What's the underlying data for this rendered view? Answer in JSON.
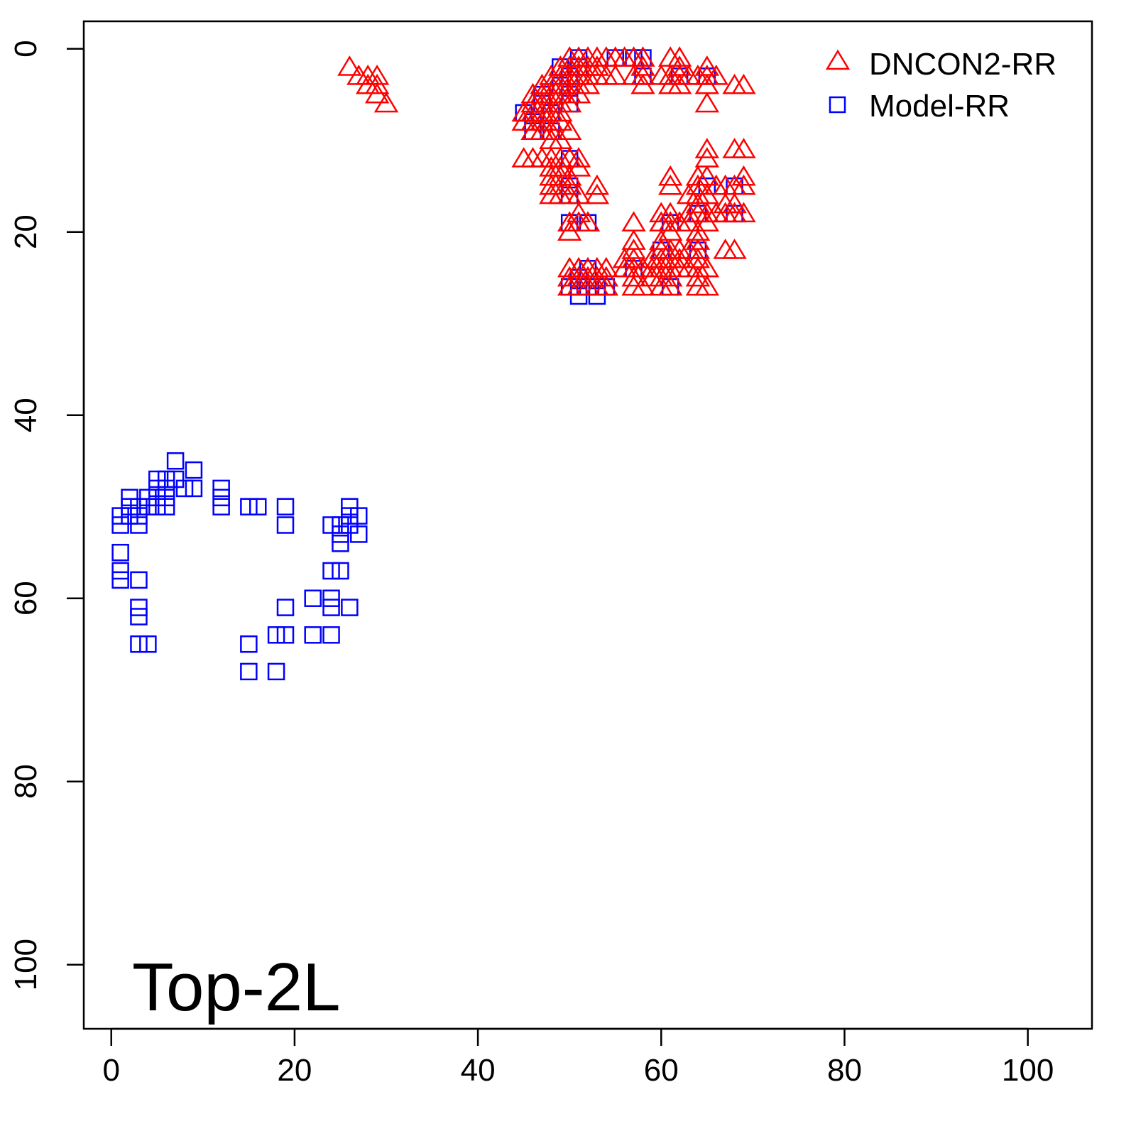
{
  "chart_data": {
    "type": "scatter",
    "title": "",
    "xlabel": "",
    "ylabel": "",
    "xlim": [
      -3,
      107
    ],
    "ylim": [
      107,
      -3
    ],
    "y_axis_reversed": true,
    "grid": false,
    "legend_position": "top-right",
    "x_ticks": [
      0,
      20,
      40,
      60,
      80,
      100
    ],
    "y_ticks": [
      0,
      20,
      40,
      60,
      80,
      100
    ],
    "x_tick_labels": [
      "0",
      "20",
      "40",
      "60",
      "80",
      "100"
    ],
    "y_tick_labels": [
      "0",
      "20",
      "40",
      "60",
      "80",
      "100"
    ],
    "annotation": "Top-2L",
    "series": [
      {
        "name": "DNCON2-RR",
        "marker": "triangle",
        "color": "#ff0000",
        "points": [
          [
            26,
            2
          ],
          [
            27,
            3
          ],
          [
            28,
            3
          ],
          [
            28,
            4
          ],
          [
            29,
            3
          ],
          [
            29,
            4
          ],
          [
            29,
            5
          ],
          [
            30,
            6
          ],
          [
            50,
            1
          ],
          [
            51,
            1
          ],
          [
            52,
            1
          ],
          [
            53,
            1
          ],
          [
            54,
            1
          ],
          [
            55,
            1
          ],
          [
            56,
            1
          ],
          [
            57,
            1
          ],
          [
            58,
            1
          ],
          [
            61,
            1
          ],
          [
            62,
            1
          ],
          [
            49,
            2
          ],
          [
            50,
            2
          ],
          [
            51,
            2
          ],
          [
            52,
            2
          ],
          [
            53,
            2
          ],
          [
            58,
            2
          ],
          [
            62,
            2
          ],
          [
            65,
            2
          ],
          [
            48,
            3
          ],
          [
            49,
            3
          ],
          [
            50,
            3
          ],
          [
            51,
            3
          ],
          [
            52,
            3
          ],
          [
            53,
            3
          ],
          [
            54,
            3
          ],
          [
            55,
            3
          ],
          [
            57,
            3
          ],
          [
            58,
            3
          ],
          [
            60,
            3
          ],
          [
            61,
            3
          ],
          [
            62,
            3
          ],
          [
            63,
            3
          ],
          [
            64,
            3
          ],
          [
            65,
            3
          ],
          [
            66,
            3
          ],
          [
            47,
            4
          ],
          [
            48,
            4
          ],
          [
            49,
            4
          ],
          [
            50,
            4
          ],
          [
            51,
            4
          ],
          [
            52,
            4
          ],
          [
            58,
            4
          ],
          [
            61,
            4
          ],
          [
            62,
            4
          ],
          [
            65,
            4
          ],
          [
            68,
            4
          ],
          [
            69,
            4
          ],
          [
            46,
            5
          ],
          [
            47,
            5
          ],
          [
            48,
            5
          ],
          [
            49,
            5
          ],
          [
            50,
            5
          ],
          [
            51,
            5
          ],
          [
            46,
            6
          ],
          [
            47,
            6
          ],
          [
            48,
            6
          ],
          [
            49,
            6
          ],
          [
            50,
            6
          ],
          [
            65,
            6
          ],
          [
            45,
            7
          ],
          [
            46,
            7
          ],
          [
            47,
            7
          ],
          [
            48,
            7
          ],
          [
            49,
            7
          ],
          [
            45,
            8
          ],
          [
            46,
            8
          ],
          [
            47,
            8
          ],
          [
            48,
            8
          ],
          [
            49,
            8
          ],
          [
            46,
            9
          ],
          [
            47,
            9
          ],
          [
            48,
            9
          ],
          [
            50,
            9
          ],
          [
            48,
            10
          ],
          [
            49,
            10
          ],
          [
            65,
            11
          ],
          [
            68,
            11
          ],
          [
            69,
            11
          ],
          [
            45,
            12
          ],
          [
            46,
            12
          ],
          [
            47,
            12
          ],
          [
            48,
            12
          ],
          [
            49,
            12
          ],
          [
            50,
            12
          ],
          [
            51,
            12
          ],
          [
            65,
            12
          ],
          [
            48,
            13
          ],
          [
            49,
            13
          ],
          [
            51,
            13
          ],
          [
            48,
            14
          ],
          [
            49,
            14
          ],
          [
            50,
            14
          ],
          [
            61,
            14
          ],
          [
            64,
            14
          ],
          [
            65,
            14
          ],
          [
            69,
            14
          ],
          [
            48,
            15
          ],
          [
            49,
            15
          ],
          [
            50,
            15
          ],
          [
            53,
            15
          ],
          [
            61,
            15
          ],
          [
            64,
            15
          ],
          [
            66,
            15
          ],
          [
            67,
            15
          ],
          [
            68,
            15
          ],
          [
            69,
            15
          ],
          [
            48,
            16
          ],
          [
            49,
            16
          ],
          [
            50,
            16
          ],
          [
            51,
            16
          ],
          [
            53,
            16
          ],
          [
            63,
            16
          ],
          [
            64,
            16
          ],
          [
            65,
            16
          ],
          [
            64,
            17
          ],
          [
            67,
            17
          ],
          [
            68,
            17
          ],
          [
            51,
            18
          ],
          [
            60,
            18
          ],
          [
            61,
            18
          ],
          [
            63,
            18
          ],
          [
            64,
            18
          ],
          [
            65,
            18
          ],
          [
            66,
            18
          ],
          [
            67,
            18
          ],
          [
            68,
            18
          ],
          [
            69,
            18
          ],
          [
            50,
            19
          ],
          [
            51,
            19
          ],
          [
            52,
            19
          ],
          [
            57,
            19
          ],
          [
            60,
            19
          ],
          [
            61,
            19
          ],
          [
            62,
            19
          ],
          [
            63,
            19
          ],
          [
            65,
            19
          ],
          [
            50,
            20
          ],
          [
            61,
            20
          ],
          [
            64,
            20
          ],
          [
            57,
            21
          ],
          [
            60,
            21
          ],
          [
            64,
            21
          ],
          [
            57,
            22
          ],
          [
            60,
            22
          ],
          [
            61,
            22
          ],
          [
            62,
            22
          ],
          [
            63,
            22
          ],
          [
            64,
            22
          ],
          [
            67,
            22
          ],
          [
            68,
            22
          ],
          [
            56,
            23
          ],
          [
            57,
            23
          ],
          [
            59,
            23
          ],
          [
            60,
            23
          ],
          [
            61,
            23
          ],
          [
            62,
            23
          ],
          [
            64,
            23
          ],
          [
            50,
            24
          ],
          [
            51,
            24
          ],
          [
            52,
            24
          ],
          [
            53,
            24
          ],
          [
            54,
            24
          ],
          [
            56,
            24
          ],
          [
            57,
            24
          ],
          [
            58,
            24
          ],
          [
            59,
            24
          ],
          [
            60,
            24
          ],
          [
            61,
            24
          ],
          [
            62,
            24
          ],
          [
            63,
            24
          ],
          [
            64,
            24
          ],
          [
            65,
            24
          ],
          [
            50,
            25
          ],
          [
            51,
            25
          ],
          [
            52,
            25
          ],
          [
            53,
            25
          ],
          [
            54,
            25
          ],
          [
            57,
            25
          ],
          [
            59,
            25
          ],
          [
            60,
            25
          ],
          [
            61,
            25
          ],
          [
            64,
            25
          ],
          [
            50,
            26
          ],
          [
            51,
            26
          ],
          [
            52,
            26
          ],
          [
            53,
            26
          ],
          [
            54,
            26
          ],
          [
            57,
            26
          ],
          [
            58,
            26
          ],
          [
            60,
            26
          ],
          [
            61,
            26
          ],
          [
            64,
            26
          ],
          [
            65,
            26
          ]
        ]
      },
      {
        "name": "Model-RR",
        "marker": "square",
        "color": "#0000ff",
        "points": [
          [
            1,
            51
          ],
          [
            1,
            52
          ],
          [
            1,
            55
          ],
          [
            1,
            57
          ],
          [
            1,
            58
          ],
          [
            2,
            49
          ],
          [
            2,
            50
          ],
          [
            2,
            51
          ],
          [
            3,
            50
          ],
          [
            3,
            51
          ],
          [
            3,
            52
          ],
          [
            3,
            58
          ],
          [
            3,
            61
          ],
          [
            3,
            62
          ],
          [
            3,
            65
          ],
          [
            4,
            49
          ],
          [
            4,
            50
          ],
          [
            4,
            65
          ],
          [
            5,
            47
          ],
          [
            5,
            48
          ],
          [
            5,
            49
          ],
          [
            5,
            50
          ],
          [
            6,
            47
          ],
          [
            6,
            48
          ],
          [
            6,
            49
          ],
          [
            6,
            50
          ],
          [
            7,
            45
          ],
          [
            7,
            47
          ],
          [
            8,
            48
          ],
          [
            9,
            46
          ],
          [
            9,
            48
          ],
          [
            12,
            48
          ],
          [
            12,
            49
          ],
          [
            12,
            50
          ],
          [
            15,
            50
          ],
          [
            16,
            50
          ],
          [
            19,
            50
          ],
          [
            19,
            52
          ],
          [
            15,
            65
          ],
          [
            15,
            68
          ],
          [
            18,
            64
          ],
          [
            18,
            68
          ],
          [
            19,
            61
          ],
          [
            19,
            64
          ],
          [
            22,
            60
          ],
          [
            22,
            64
          ],
          [
            24,
            52
          ],
          [
            24,
            57
          ],
          [
            24,
            60
          ],
          [
            24,
            61
          ],
          [
            24,
            64
          ],
          [
            25,
            52
          ],
          [
            25,
            53
          ],
          [
            25,
            54
          ],
          [
            25,
            57
          ],
          [
            26,
            50
          ],
          [
            26,
            51
          ],
          [
            26,
            52
          ],
          [
            26,
            61
          ],
          [
            27,
            51
          ],
          [
            27,
            53
          ],
          [
            45,
            7
          ],
          [
            46,
            8
          ],
          [
            46,
            9
          ],
          [
            47,
            5
          ],
          [
            47,
            6
          ],
          [
            48,
            7
          ],
          [
            48,
            9
          ],
          [
            49,
            2
          ],
          [
            49,
            4
          ],
          [
            50,
            3
          ],
          [
            50,
            5
          ],
          [
            50,
            6
          ],
          [
            50,
            12
          ],
          [
            50,
            15
          ],
          [
            50,
            16
          ],
          [
            50,
            19
          ],
          [
            51,
            1
          ],
          [
            51,
            2
          ],
          [
            52,
            19
          ],
          [
            50,
            26
          ],
          [
            51,
            25
          ],
          [
            51,
            26
          ],
          [
            51,
            27
          ],
          [
            52,
            24
          ],
          [
            52,
            26
          ],
          [
            53,
            26
          ],
          [
            53,
            27
          ],
          [
            54,
            26
          ],
          [
            55,
            1
          ],
          [
            57,
            1
          ],
          [
            58,
            1
          ],
          [
            58,
            3
          ],
          [
            57,
            24
          ],
          [
            60,
            22
          ],
          [
            61,
            19
          ],
          [
            61,
            26
          ],
          [
            62,
            3
          ],
          [
            64,
            18
          ],
          [
            64,
            22
          ],
          [
            65,
            3
          ],
          [
            65,
            15
          ],
          [
            68,
            15
          ],
          [
            68,
            18
          ]
        ]
      }
    ]
  }
}
